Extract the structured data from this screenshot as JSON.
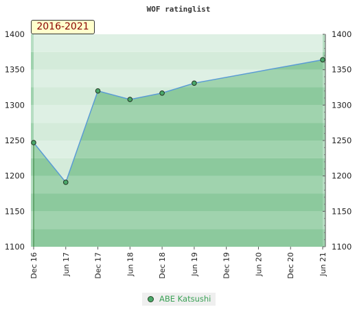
{
  "chart_data": {
    "type": "area",
    "title": "WOF ratinglist",
    "period_label": "2016-2021",
    "x": [
      "Dec 16",
      "Jun 17",
      "Dec 17",
      "Jun 18",
      "Dec 18",
      "Jun 19",
      "Jun 21"
    ],
    "x_ticks": [
      "Dec 16",
      "Jun 17",
      "Dec 17",
      "Jun 18",
      "Dec 18",
      "Jun 19",
      "Dec 19",
      "Jun 20",
      "Dec 20",
      "Jun 21"
    ],
    "y_ticks": [
      1100,
      1150,
      1200,
      1250,
      1300,
      1350,
      1400
    ],
    "ylim": [
      1100,
      1400
    ],
    "series": [
      {
        "name": "ABE Katsushi",
        "values": [
          1247,
          1191,
          1320,
          1308,
          1317,
          1331,
          1364
        ]
      }
    ],
    "legend_position": "bottom-center",
    "grid": false,
    "colors": {
      "line": "#5a9bd5",
      "marker": "#4aa86a",
      "fill": "#3aa155",
      "legend_text": "#3aa155",
      "period_text": "#8b0000",
      "period_bg": "#ffffcc"
    }
  }
}
